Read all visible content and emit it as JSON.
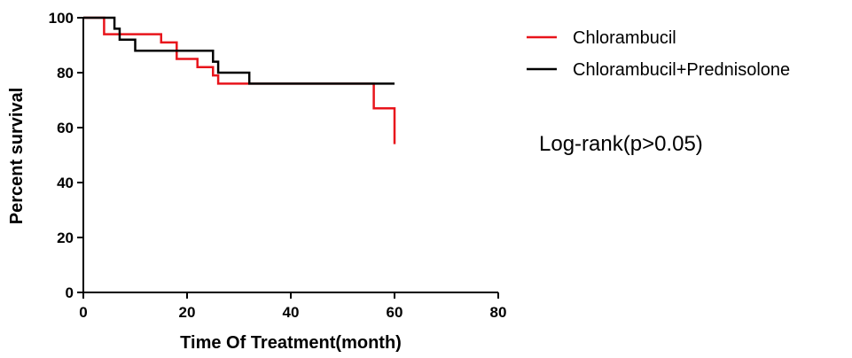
{
  "chart_data": {
    "type": "line",
    "xlabel": "Time Of Treatment(month)",
    "ylabel": "Percent survival",
    "xlim": [
      0,
      80
    ],
    "ylim": [
      0,
      100
    ],
    "xticks": [
      "0",
      "20",
      "40",
      "60",
      "80"
    ],
    "yticks": [
      "0",
      "20",
      "40",
      "60",
      "80",
      "100"
    ],
    "grid": false,
    "legend_position": "right",
    "annotation": "Log-rank(p>0.05)",
    "series": [
      {
        "name": "Chlorambucil",
        "color": "#e8141b",
        "steps": [
          [
            0,
            100
          ],
          [
            4,
            94
          ],
          [
            15,
            91
          ],
          [
            18,
            85
          ],
          [
            22,
            82
          ],
          [
            25,
            79
          ],
          [
            26,
            76
          ],
          [
            56,
            67
          ],
          [
            60,
            54
          ]
        ],
        "end_x": 60
      },
      {
        "name": "Chlorambucil+Prednisolone",
        "color": "#000000",
        "steps": [
          [
            0,
            100
          ],
          [
            6,
            96
          ],
          [
            7,
            92
          ],
          [
            10,
            88
          ],
          [
            25,
            84
          ],
          [
            26,
            80
          ],
          [
            32,
            76
          ]
        ],
        "end_x": 60
      }
    ]
  }
}
